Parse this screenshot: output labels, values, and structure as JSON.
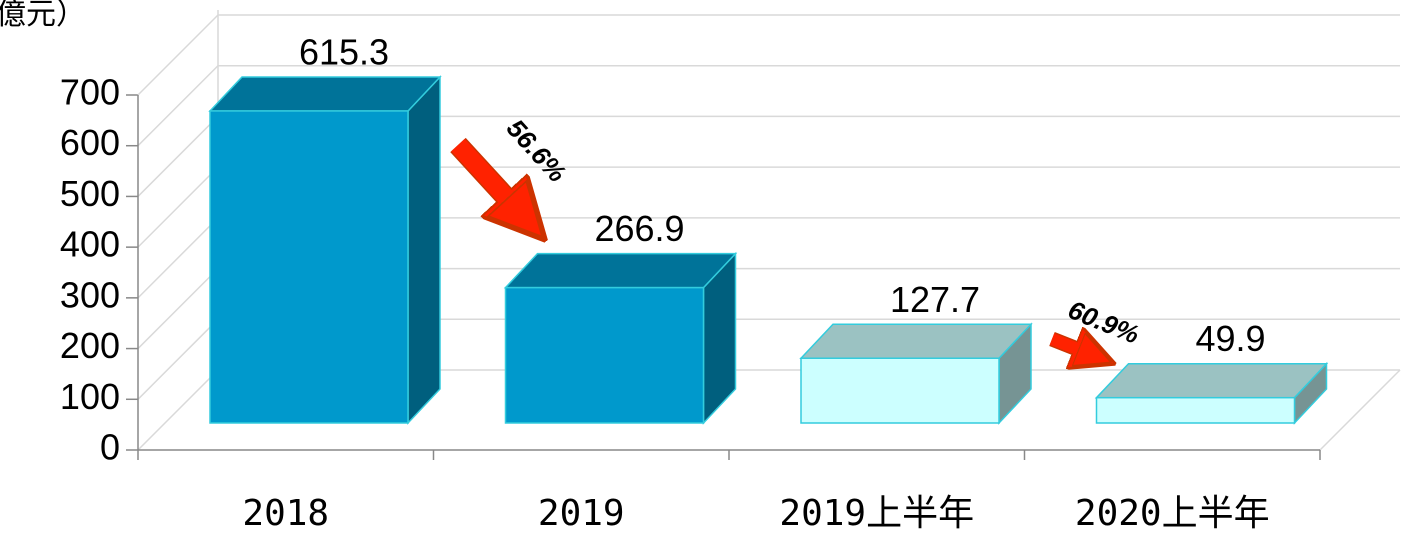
{
  "chart_data": {
    "type": "bar3d",
    "unit_label": "億元）",
    "categories": [
      "2018",
      "2019",
      "2019上半年",
      "2020上半年"
    ],
    "values": [
      615.3,
      266.9,
      127.7,
      49.9
    ],
    "colors": [
      "#0099cc",
      "#0099cc",
      "#ccffff",
      "#ccffff"
    ],
    "ylim": [
      0,
      700
    ],
    "yticks": [
      0,
      100,
      200,
      300,
      400,
      500,
      600,
      700
    ],
    "grid": true,
    "annotations": [
      {
        "text": "56.6%"
      },
      {
        "text": "60.9%"
      }
    ]
  }
}
